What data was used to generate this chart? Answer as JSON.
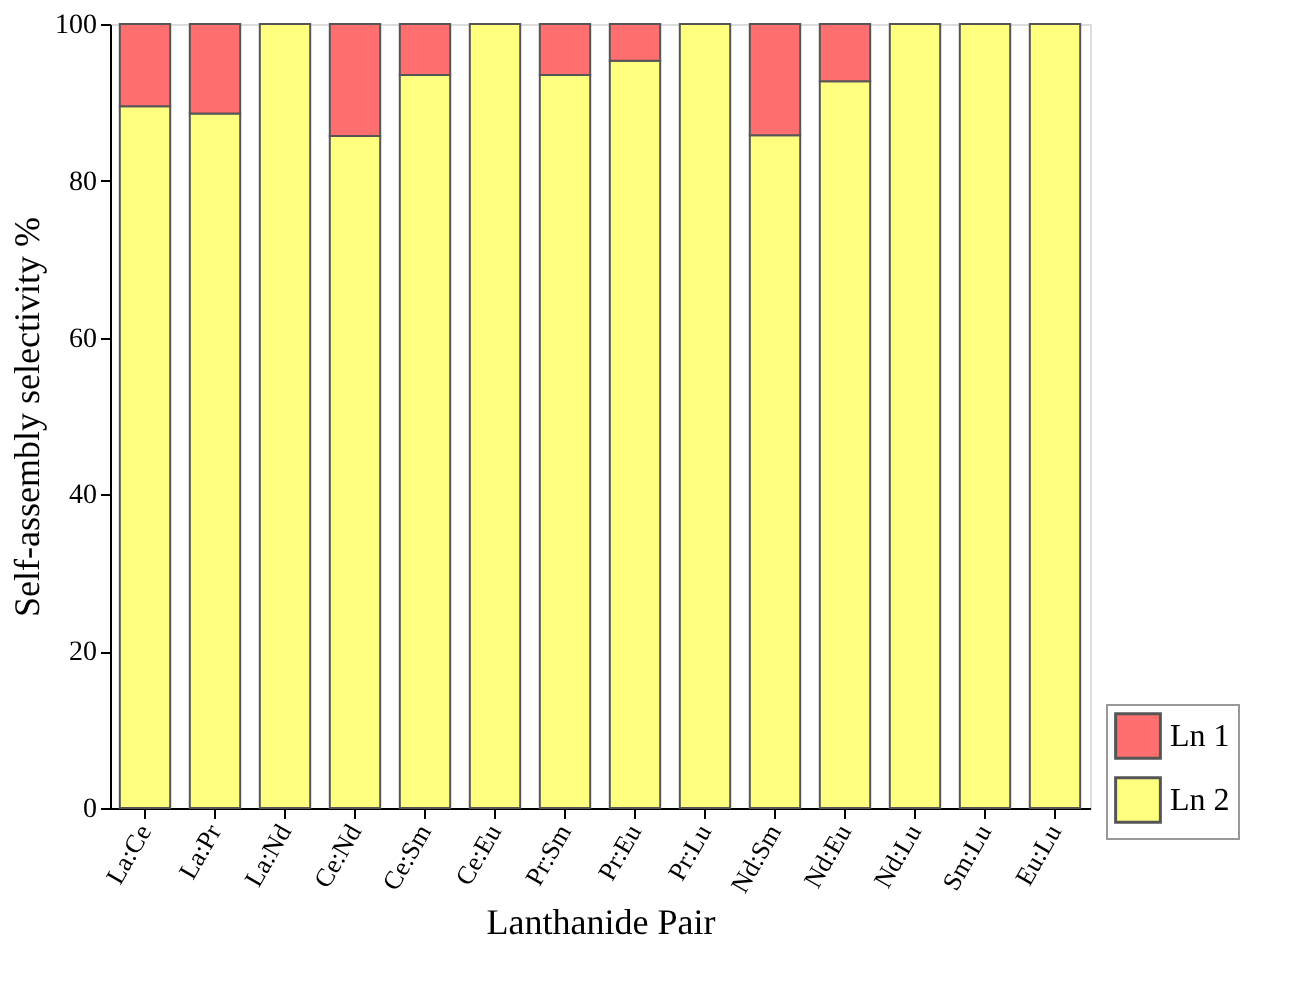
{
  "chart_data": {
    "type": "bar",
    "stacked": true,
    "xlabel": "Lanthanide Pair",
    "ylabel": "Self-assembly selectivity %",
    "categories": [
      "La:Ce",
      "La:Pr",
      "La:Nd",
      "Ce:Nd",
      "Ce:Sm",
      "Ce:Eu",
      "Pr:Sm",
      "Pr:Eu",
      "Pr:Lu",
      "Nd:Sm",
      "Nd:Eu",
      "Nd:Lu",
      "Sm:Lu",
      "Eu:Lu"
    ],
    "series": [
      {
        "name": "Ln 2",
        "color": "#ffff7f",
        "values": [
          89.5,
          88.6,
          100,
          85.7,
          93.5,
          100,
          93.5,
          95.3,
          100,
          85.8,
          92.7,
          100,
          100,
          100
        ]
      },
      {
        "name": "Ln 1",
        "color": "#ff6f6f",
        "values": [
          10.5,
          11.4,
          null,
          14.3,
          6.5,
          null,
          6.5,
          4.7,
          null,
          14.2,
          7.3,
          null,
          null,
          null
        ]
      }
    ],
    "ylim": [
      0,
      100
    ],
    "yticks": [
      0,
      20,
      40,
      60,
      80,
      100
    ],
    "grid": false,
    "legend": "bottom right"
  }
}
